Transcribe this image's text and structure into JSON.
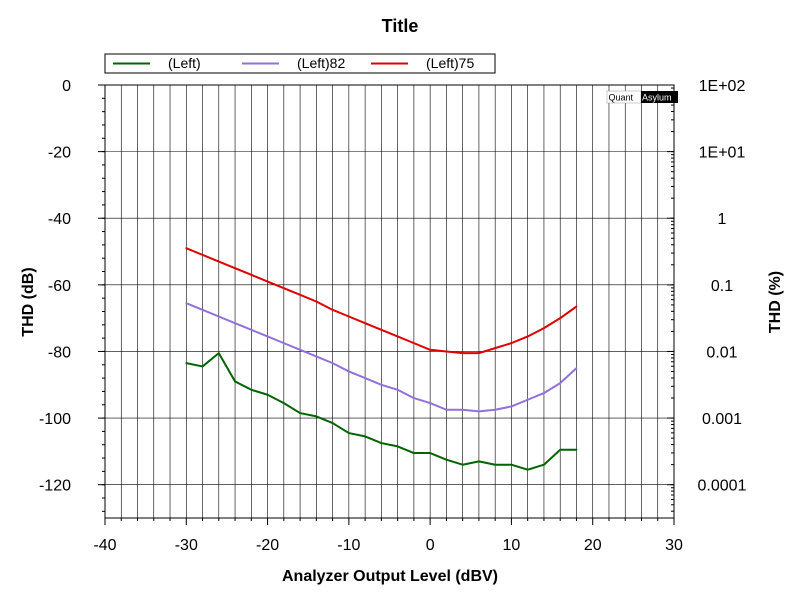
{
  "chart_data": {
    "type": "line",
    "title": "Title",
    "xlabel": "Analyzer Output Level (dBV)",
    "ylabel": "THD (dB)",
    "y2label": "THD (%)",
    "xlim": [
      -40,
      30
    ],
    "ylim": [
      -130,
      0
    ],
    "x_ticks": [
      -40,
      -30,
      -20,
      -10,
      0,
      10,
      20,
      30
    ],
    "x_tick_labels": [
      "-40",
      "-30",
      "-20",
      "-10",
      "0",
      "10",
      "20",
      "30"
    ],
    "y_ticks": [
      0,
      -20,
      -40,
      -60,
      -80,
      -100,
      -120
    ],
    "y_tick_labels": [
      "0",
      "-20",
      "-40",
      "-60",
      "-80",
      "-100",
      "-120"
    ],
    "y2_scale": "log",
    "y2_ticks": [
      100,
      10,
      1,
      0.1,
      0.01,
      0.001,
      0.0001
    ],
    "y2_tick_labels": [
      "1E+02",
      "1E+01",
      "1",
      "0.1",
      "0.01",
      "0.001",
      "0.0001"
    ],
    "grid": true,
    "legend_position": "top",
    "logo": "QuantAsylum",
    "series": [
      {
        "name": "(Left)",
        "color": "#006400",
        "x": [
          -30,
          -28,
          -26,
          -24,
          -22,
          -20,
          -18,
          -16,
          -14,
          -12,
          -10,
          -8,
          -6,
          -4,
          -2,
          0,
          2,
          4,
          6,
          8,
          10,
          12,
          14,
          16,
          18
        ],
        "y": [
          -83.5,
          -84.5,
          -80.5,
          -89,
          -91.5,
          -93,
          -95.5,
          -98.5,
          -99.5,
          -101.5,
          -104.5,
          -105.5,
          -107.5,
          -108.5,
          -110.5,
          -110.5,
          -112.5,
          -114,
          -113,
          -114,
          -114,
          -115.5,
          -114,
          -109.5,
          -109.5
        ]
      },
      {
        "name": "(Left)82",
        "color": "#9370db",
        "x": [
          -30,
          -28,
          -26,
          -24,
          -22,
          -20,
          -18,
          -16,
          -14,
          -12,
          -10,
          -8,
          -6,
          -4,
          -2,
          0,
          2,
          4,
          6,
          8,
          10,
          12,
          14,
          16,
          18
        ],
        "y": [
          -65.5,
          -67.5,
          -69.5,
          -71.5,
          -73.5,
          -75.5,
          -77.5,
          -79.5,
          -81.5,
          -83.5,
          -86,
          -88,
          -90,
          -91.5,
          -94,
          -95.5,
          -97.5,
          -97.5,
          -98,
          -97.5,
          -96.5,
          -94.5,
          -92.5,
          -89.5,
          -85
        ]
      },
      {
        "name": "(Left)75",
        "color": "#e00000",
        "x": [
          -30,
          -28,
          -26,
          -24,
          -22,
          -20,
          -18,
          -16,
          -14,
          -12,
          -10,
          -8,
          -6,
          -4,
          -2,
          0,
          2,
          4,
          6,
          8,
          10,
          12,
          14,
          16,
          18
        ],
        "y": [
          -49,
          -51,
          -53,
          -55,
          -57,
          -59,
          -61,
          -63,
          -65,
          -67.5,
          -69.5,
          -71.5,
          -73.5,
          -75.5,
          -77.5,
          -79.5,
          -80,
          -80.5,
          -80.5,
          -79,
          -77.5,
          -75.5,
          -73,
          -70,
          -66.5
        ]
      }
    ]
  }
}
